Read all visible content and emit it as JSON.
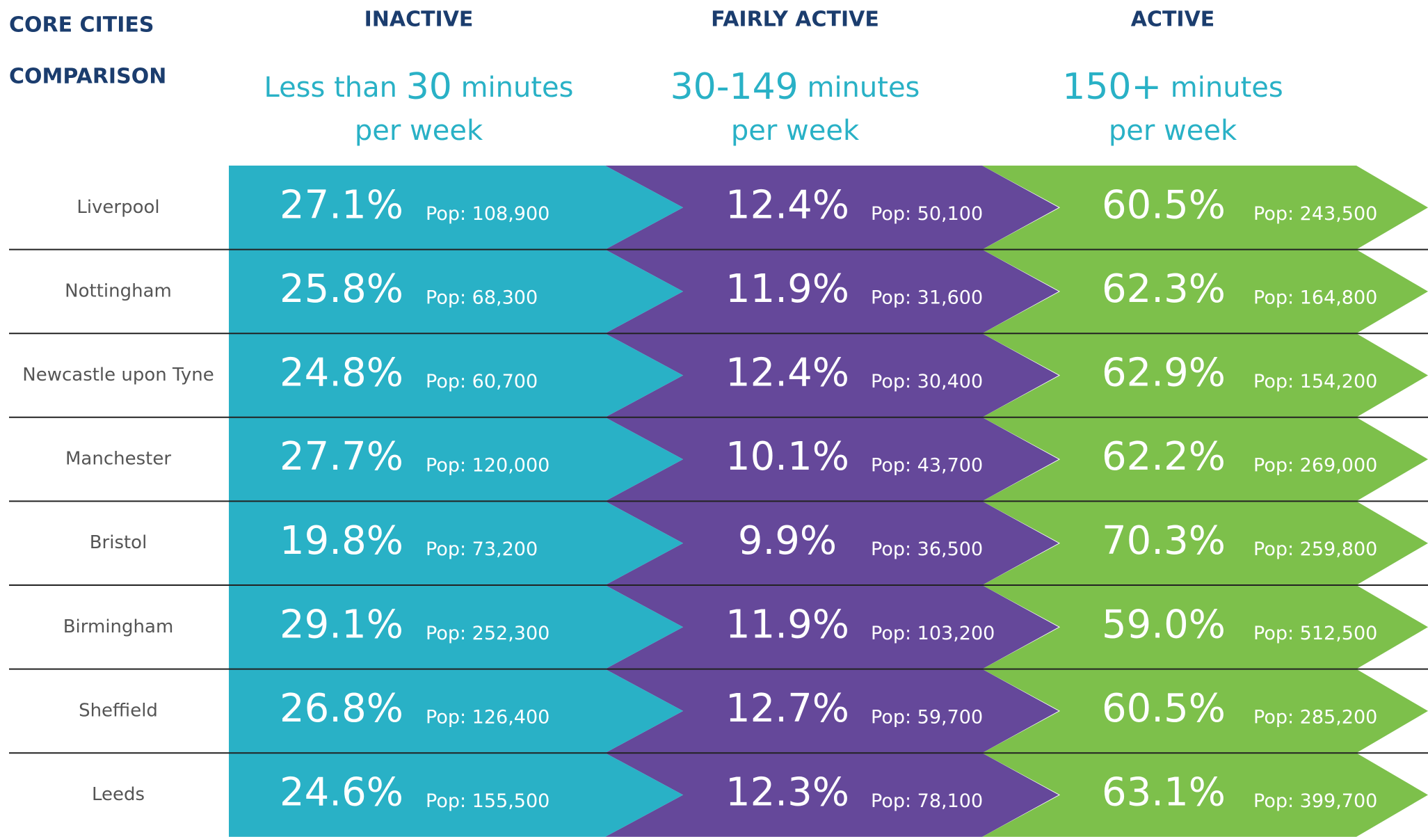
{
  "header": {
    "title_line1": "CORE CITIES",
    "title_line2": "COMPARISON"
  },
  "columns": [
    {
      "title": "INACTIVE",
      "sub_before": "Less than ",
      "sub_big": "30",
      "sub_after": " minutes",
      "sub_line2": "per week"
    },
    {
      "title": "FAIRLY ACTIVE",
      "sub_before": "",
      "sub_big": "30-149",
      "sub_after": " minutes",
      "sub_line2": "per week"
    },
    {
      "title": "ACTIVE",
      "sub_before": "",
      "sub_big": "150+",
      "sub_after": " minutes",
      "sub_line2": "per week"
    }
  ],
  "rows": [
    {
      "city": "Liverpool",
      "cells": [
        [
          "27.1%",
          "Pop: 108,900"
        ],
        [
          "12.4%",
          "Pop: 50,100"
        ],
        [
          "60.5%",
          "Pop: 243,500"
        ]
      ]
    },
    {
      "city": "Nottingham",
      "cells": [
        [
          "25.8%",
          "Pop: 68,300"
        ],
        [
          "11.9%",
          "Pop: 31,600"
        ],
        [
          "62.3%",
          "Pop: 164,800"
        ]
      ]
    },
    {
      "city": "Newcastle upon Tyne",
      "cells": [
        [
          "24.8%",
          "Pop: 60,700"
        ],
        [
          "12.4%",
          "Pop: 30,400"
        ],
        [
          "62.9%",
          "Pop: 154,200"
        ]
      ]
    },
    {
      "city": "Manchester",
      "cells": [
        [
          "27.7%",
          "Pop: 120,000"
        ],
        [
          "10.1%",
          "Pop: 43,700"
        ],
        [
          "62.2%",
          "Pop: 269,000"
        ]
      ]
    },
    {
      "city": "Bristol",
      "cells": [
        [
          "19.8%",
          "Pop: 73,200"
        ],
        [
          "9.9%",
          "Pop: 36,500"
        ],
        [
          "70.3%",
          "Pop: 259,800"
        ]
      ]
    },
    {
      "city": "Birmingham",
      "cells": [
        [
          "29.1%",
          "Pop: 252,300"
        ],
        [
          "11.9%",
          "Pop: 103,200"
        ],
        [
          "59.0%",
          "Pop: 512,500"
        ]
      ]
    },
    {
      "city": "Sheffield",
      "cells": [
        [
          "26.8%",
          "Pop: 126,400"
        ],
        [
          "12.7%",
          "Pop: 59,700"
        ],
        [
          "60.5%",
          "Pop: 285,200"
        ]
      ]
    },
    {
      "city": "Leeds",
      "cells": [
        [
          "24.6%",
          "Pop: 155,500"
        ],
        [
          "12.3%",
          "Pop: 78,100"
        ],
        [
          "63.1%",
          "Pop: 399,700"
        ]
      ]
    }
  ]
}
